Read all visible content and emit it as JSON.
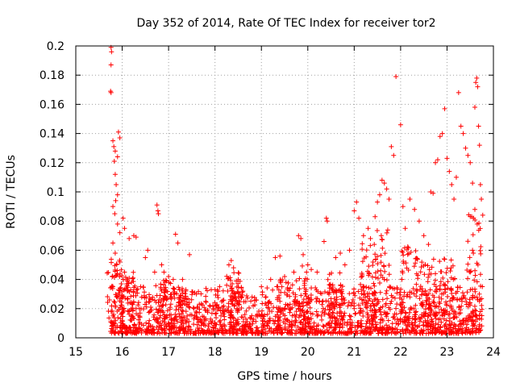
{
  "chart_data": {
    "type": "scatter",
    "title": "Day 352 of 2014, Rate Of TEC Index for receiver tor2",
    "xlabel": "GPS time / hours",
    "ylabel": "ROTI / TECUs",
    "xlim": [
      15,
      24
    ],
    "ylim": [
      0,
      0.2
    ],
    "grid": true,
    "marker": "plus",
    "marker_color": "#ff0000",
    "x_ticks": [
      "15",
      "16",
      "17",
      "18",
      "19",
      "20",
      "21",
      "22",
      "23",
      "24"
    ],
    "y_ticks": [
      "0",
      "0.02",
      "0.04",
      "0.06",
      "0.08",
      "0.1",
      "0.12",
      "0.14",
      "0.16",
      "0.18",
      "0.2"
    ],
    "series": [
      {
        "name": "ROTI",
        "points": [
          [
            15.76,
            0.199
          ],
          [
            15.77,
            0.196
          ],
          [
            15.76,
            0.187
          ],
          [
            15.75,
            0.169
          ],
          [
            15.76,
            0.168
          ],
          [
            15.8,
            0.135
          ],
          [
            15.82,
            0.131
          ],
          [
            15.85,
            0.128
          ],
          [
            15.83,
            0.121
          ],
          [
            15.85,
            0.112
          ],
          [
            15.87,
            0.105
          ],
          [
            15.9,
            0.098
          ],
          [
            15.86,
            0.094
          ],
          [
            15.92,
            0.141
          ],
          [
            15.95,
            0.137
          ],
          [
            15.9,
            0.124
          ],
          [
            15.8,
            0.09
          ],
          [
            15.84,
            0.085
          ],
          [
            15.9,
            0.078
          ],
          [
            15.95,
            0.072
          ],
          [
            16.02,
            0.082
          ],
          [
            16.05,
            0.075
          ],
          [
            16.15,
            0.068
          ],
          [
            16.25,
            0.07
          ],
          [
            16.3,
            0.069
          ],
          [
            15.8,
            0.065
          ],
          [
            15.85,
            0.058
          ],
          [
            15.95,
            0.052
          ],
          [
            16.05,
            0.045
          ],
          [
            16.1,
            0.04
          ],
          [
            16.2,
            0.038
          ],
          [
            16.4,
            0.035
          ],
          [
            16.5,
            0.055
          ],
          [
            16.55,
            0.06
          ],
          [
            16.7,
            0.045
          ],
          [
            16.75,
            0.091
          ],
          [
            16.77,
            0.087
          ],
          [
            16.78,
            0.085
          ],
          [
            16.85,
            0.05
          ],
          [
            16.9,
            0.045
          ],
          [
            17.0,
            0.042
          ],
          [
            17.1,
            0.04
          ],
          [
            17.15,
            0.071
          ],
          [
            17.2,
            0.065
          ],
          [
            17.3,
            0.04
          ],
          [
            17.45,
            0.057
          ],
          [
            17.6,
            0.03
          ],
          [
            17.8,
            0.025
          ],
          [
            18.0,
            0.033
          ],
          [
            18.1,
            0.035
          ],
          [
            18.3,
            0.05
          ],
          [
            18.35,
            0.053
          ],
          [
            18.4,
            0.048
          ],
          [
            18.5,
            0.04
          ],
          [
            18.6,
            0.032
          ],
          [
            18.8,
            0.028
          ],
          [
            19.0,
            0.035
          ],
          [
            19.2,
            0.04
          ],
          [
            19.3,
            0.055
          ],
          [
            19.4,
            0.056
          ],
          [
            19.5,
            0.042
          ],
          [
            19.7,
            0.045
          ],
          [
            19.8,
            0.07
          ],
          [
            19.85,
            0.068
          ],
          [
            19.9,
            0.057
          ],
          [
            20.0,
            0.05
          ],
          [
            20.2,
            0.045
          ],
          [
            20.35,
            0.066
          ],
          [
            20.4,
            0.082
          ],
          [
            20.42,
            0.08
          ],
          [
            20.6,
            0.055
          ],
          [
            20.7,
            0.058
          ],
          [
            20.8,
            0.05
          ],
          [
            20.9,
            0.06
          ],
          [
            21.0,
            0.087
          ],
          [
            21.05,
            0.093
          ],
          [
            21.1,
            0.082
          ],
          [
            21.2,
            0.07
          ],
          [
            21.3,
            0.075
          ],
          [
            21.35,
            0.068
          ],
          [
            21.45,
            0.083
          ],
          [
            21.5,
            0.093
          ],
          [
            21.55,
            0.098
          ],
          [
            21.6,
            0.108
          ],
          [
            21.65,
            0.106
          ],
          [
            21.7,
            0.102
          ],
          [
            21.75,
            0.095
          ],
          [
            21.8,
            0.131
          ],
          [
            21.85,
            0.125
          ],
          [
            21.9,
            0.179
          ],
          [
            22.0,
            0.146
          ],
          [
            22.05,
            0.09
          ],
          [
            22.1,
            0.075
          ],
          [
            22.2,
            0.095
          ],
          [
            22.3,
            0.088
          ],
          [
            22.4,
            0.08
          ],
          [
            22.5,
            0.07
          ],
          [
            22.6,
            0.064
          ],
          [
            22.65,
            0.1
          ],
          [
            22.7,
            0.099
          ],
          [
            22.75,
            0.12
          ],
          [
            22.8,
            0.122
          ],
          [
            22.85,
            0.138
          ],
          [
            22.9,
            0.14
          ],
          [
            22.95,
            0.157
          ],
          [
            23.0,
            0.123
          ],
          [
            23.05,
            0.114
          ],
          [
            23.1,
            0.105
          ],
          [
            23.15,
            0.095
          ],
          [
            23.2,
            0.11
          ],
          [
            23.25,
            0.168
          ],
          [
            23.3,
            0.145
          ],
          [
            23.35,
            0.14
          ],
          [
            23.4,
            0.13
          ],
          [
            23.45,
            0.125
          ],
          [
            23.5,
            0.12
          ],
          [
            23.55,
            0.106
          ],
          [
            23.6,
            0.158
          ],
          [
            23.62,
            0.175
          ],
          [
            23.64,
            0.178
          ],
          [
            23.66,
            0.172
          ],
          [
            23.68,
            0.145
          ],
          [
            23.7,
            0.132
          ],
          [
            23.72,
            0.105
          ],
          [
            23.74,
            0.095
          ],
          [
            23.6,
            0.088
          ],
          [
            23.65,
            0.078
          ],
          [
            23.55,
            0.06
          ],
          [
            23.5,
            0.045
          ],
          [
            23.7,
            0.025
          ],
          [
            15.8,
            0.015
          ],
          [
            16.0,
            0.012
          ],
          [
            16.3,
            0.02
          ],
          [
            16.6,
            0.018
          ],
          [
            17.0,
            0.01
          ],
          [
            17.4,
            0.015
          ],
          [
            17.8,
            0.012
          ],
          [
            18.2,
            0.018
          ],
          [
            18.6,
            0.014
          ],
          [
            19.0,
            0.016
          ],
          [
            19.4,
            0.012
          ],
          [
            19.8,
            0.02
          ],
          [
            20.2,
            0.015
          ],
          [
            20.6,
            0.025
          ],
          [
            21.0,
            0.02
          ],
          [
            21.4,
            0.03
          ],
          [
            21.8,
            0.025
          ],
          [
            22.2,
            0.028
          ],
          [
            22.6,
            0.02
          ],
          [
            23.0,
            0.018
          ],
          [
            23.4,
            0.012
          ],
          [
            23.7,
            0.008
          ]
        ]
      }
    ],
    "background_density": {
      "description": "dense cloud of plus markers between 0.003 and ~0.035 ROTI across 15.75-23.75 h",
      "x_range": [
        15.75,
        23.75
      ],
      "y_range": [
        0.003,
        0.035
      ]
    }
  }
}
